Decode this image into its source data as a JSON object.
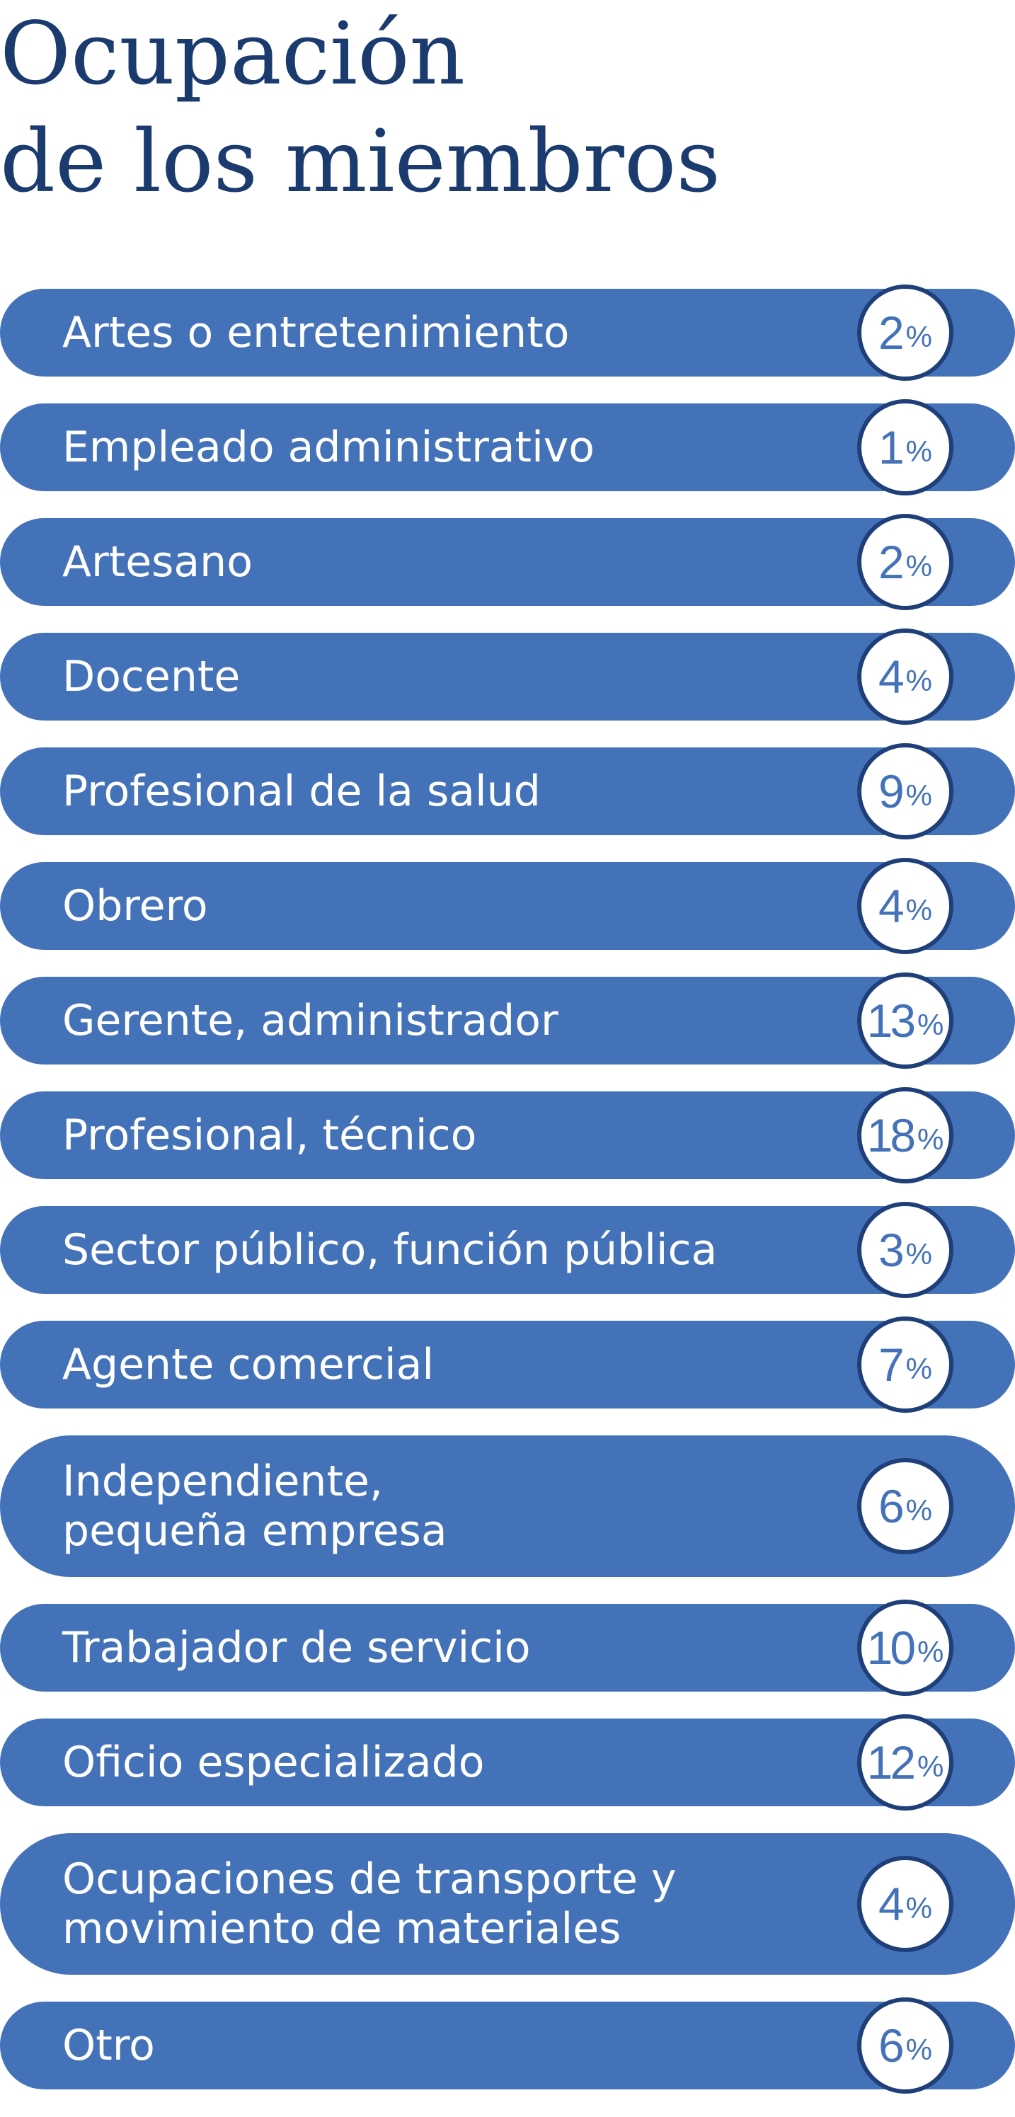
{
  "title": {
    "line1": "Ocupación",
    "line2": "de los miembros"
  },
  "colors": {
    "bar": "#4472b8",
    "title": "#1b3b6f",
    "badge_border": "#1f3f78",
    "badge_text": "#4472b8"
  },
  "chart_data": {
    "type": "bar",
    "orientation": "horizontal",
    "title": "Ocupación de los miembros",
    "unit": "%",
    "categories": [
      "Artes o entretenimiento",
      "Empleado administrativo",
      "Artesano",
      "Docente",
      "Profesional de la salud",
      "Obrero",
      "Gerente, administrador",
      "Profesional, técnico",
      "Sector público, función pública",
      "Agente comercial",
      "Independiente,\npequeña empresa",
      "Trabajador de servicio",
      "Oficio especializado",
      "Ocupaciones de transporte y\nmovimiento de materiales",
      "Otro"
    ],
    "values": [
      2,
      1,
      2,
      4,
      9,
      4,
      13,
      18,
      3,
      7,
      6,
      10,
      12,
      4,
      6
    ]
  }
}
